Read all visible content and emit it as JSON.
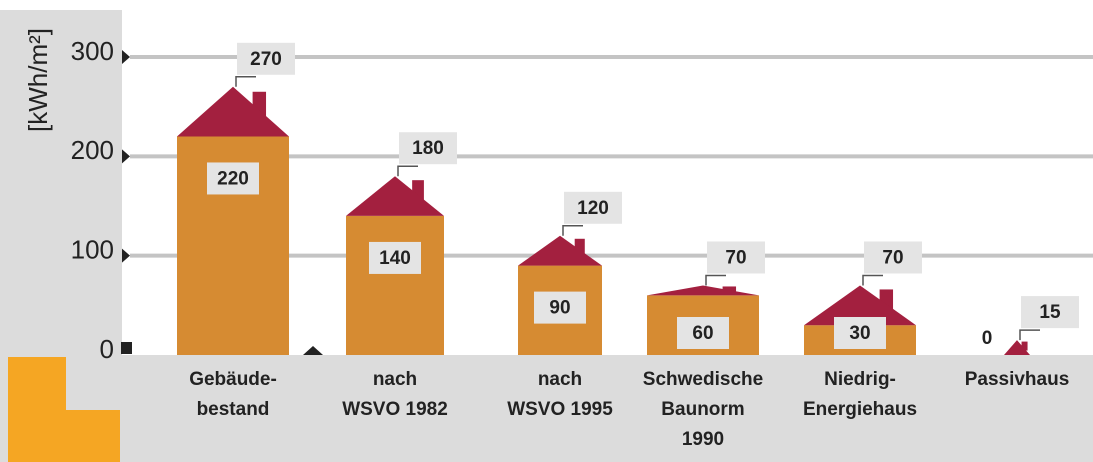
{
  "chart_data": {
    "type": "house",
    "y_label": "[kWh/m²]",
    "categories": [
      [
        "Gebäude-",
        "bestand"
      ],
      [
        "nach",
        "WSVO 1982"
      ],
      [
        "nach",
        "WSVO 1995"
      ],
      [
        "Schwedische",
        "Baunorm",
        "1990"
      ],
      [
        "Niedrig-",
        "Energiehaus"
      ],
      [
        "Passivhaus"
      ]
    ],
    "series": [
      {
        "color": "#d68b32",
        "values": [
          220,
          140,
          90,
          60,
          30,
          0
        ]
      },
      {
        "color": "#a3203f",
        "values": [
          270,
          180,
          120,
          70,
          70,
          15
        ]
      }
    ],
    "ylim": [
      0,
      300
    ],
    "yticks": [
      0,
      100,
      200,
      300
    ],
    "grid": true
  }
}
